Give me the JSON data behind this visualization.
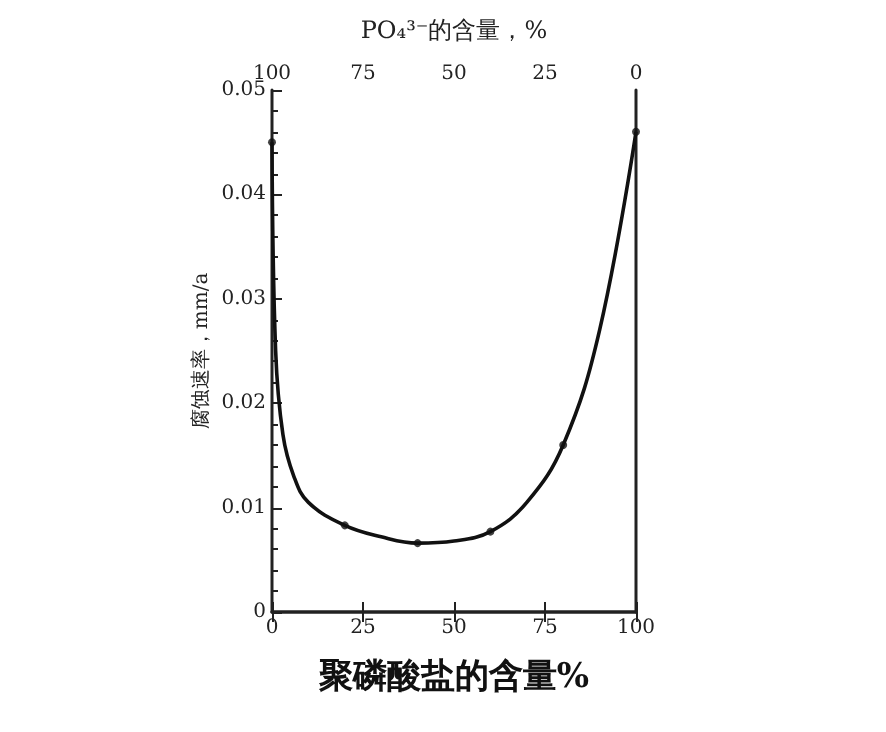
{
  "chart_data": {
    "type": "line",
    "xlabel": "聚磷酸盐的含量%",
    "x2label": "PO₄³⁻的含量，%",
    "ylabel": "腐蚀速率，mm/a",
    "xlim": [
      0,
      100
    ],
    "xticks": [
      0,
      25,
      50,
      75,
      100
    ],
    "x2lim": [
      100,
      0
    ],
    "x2ticks": [
      100,
      75,
      50,
      25,
      0
    ],
    "ylim": [
      0,
      0.05
    ],
    "yticks": [
      0,
      0.01,
      0.02,
      0.03,
      0.04,
      0.05
    ],
    "grid": false,
    "series": [
      {
        "color": "#111111",
        "marker": "none",
        "line_style": "solid",
        "x": [
          0,
          1,
          3,
          6,
          10,
          20,
          30,
          40,
          50,
          60,
          70,
          80,
          90,
          100
        ],
        "values": [
          0.045,
          0.025,
          0.017,
          0.013,
          0.0105,
          0.0083,
          0.0072,
          0.0066,
          0.0068,
          0.0077,
          0.0105,
          0.016,
          0.027,
          0.046
        ]
      },
      {
        "type": "scatter",
        "color": "#111111",
        "marker": "circle",
        "x": [
          0,
          20,
          40,
          60,
          80,
          100
        ],
        "values": [
          0.045,
          0.0083,
          0.0066,
          0.0077,
          0.016,
          0.046
        ]
      }
    ]
  }
}
